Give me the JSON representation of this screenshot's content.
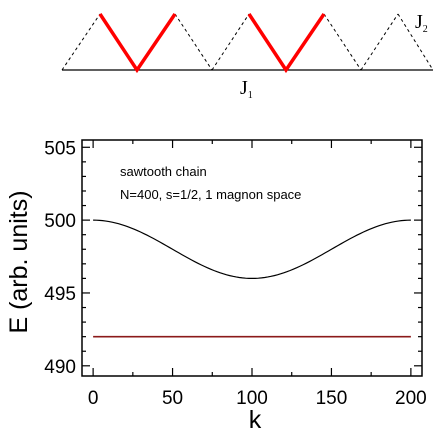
{
  "diagram": {
    "j1_label": "J",
    "j1_sub": "1",
    "j2_label": "J",
    "j2_sub": "2",
    "highlight_color": "#ff0000"
  },
  "chart_data": {
    "type": "line",
    "title": "",
    "xlabel": "k",
    "ylabel": "E (arb. units)",
    "xlim": [
      -7,
      207
    ],
    "ylim": [
      489.3,
      505.5
    ],
    "xticks": [
      0,
      50,
      100,
      150,
      200
    ],
    "yticks": [
      490,
      495,
      500,
      505
    ],
    "annotations": [
      "sawtooth chain",
      "N=400, s=1/2, 1 magnon space"
    ],
    "grid": false,
    "series": [
      {
        "color": "#000000",
        "x": [
          0,
          10,
          20,
          30,
          40,
          50,
          60,
          70,
          80,
          90,
          100,
          110,
          120,
          130,
          140,
          150,
          160,
          170,
          180,
          190,
          200
        ],
        "y": [
          500.0,
          499.9,
          499.62,
          499.17,
          498.59,
          498.0,
          497.41,
          496.83,
          496.38,
          496.1,
          496.0,
          496.1,
          496.38,
          496.83,
          497.41,
          498.0,
          498.59,
          499.17,
          499.62,
          499.9,
          500.0
        ]
      },
      {
        "color": "#8b1a1a",
        "x": [
          0,
          200
        ],
        "y": [
          492.0,
          492.0
        ]
      }
    ]
  }
}
